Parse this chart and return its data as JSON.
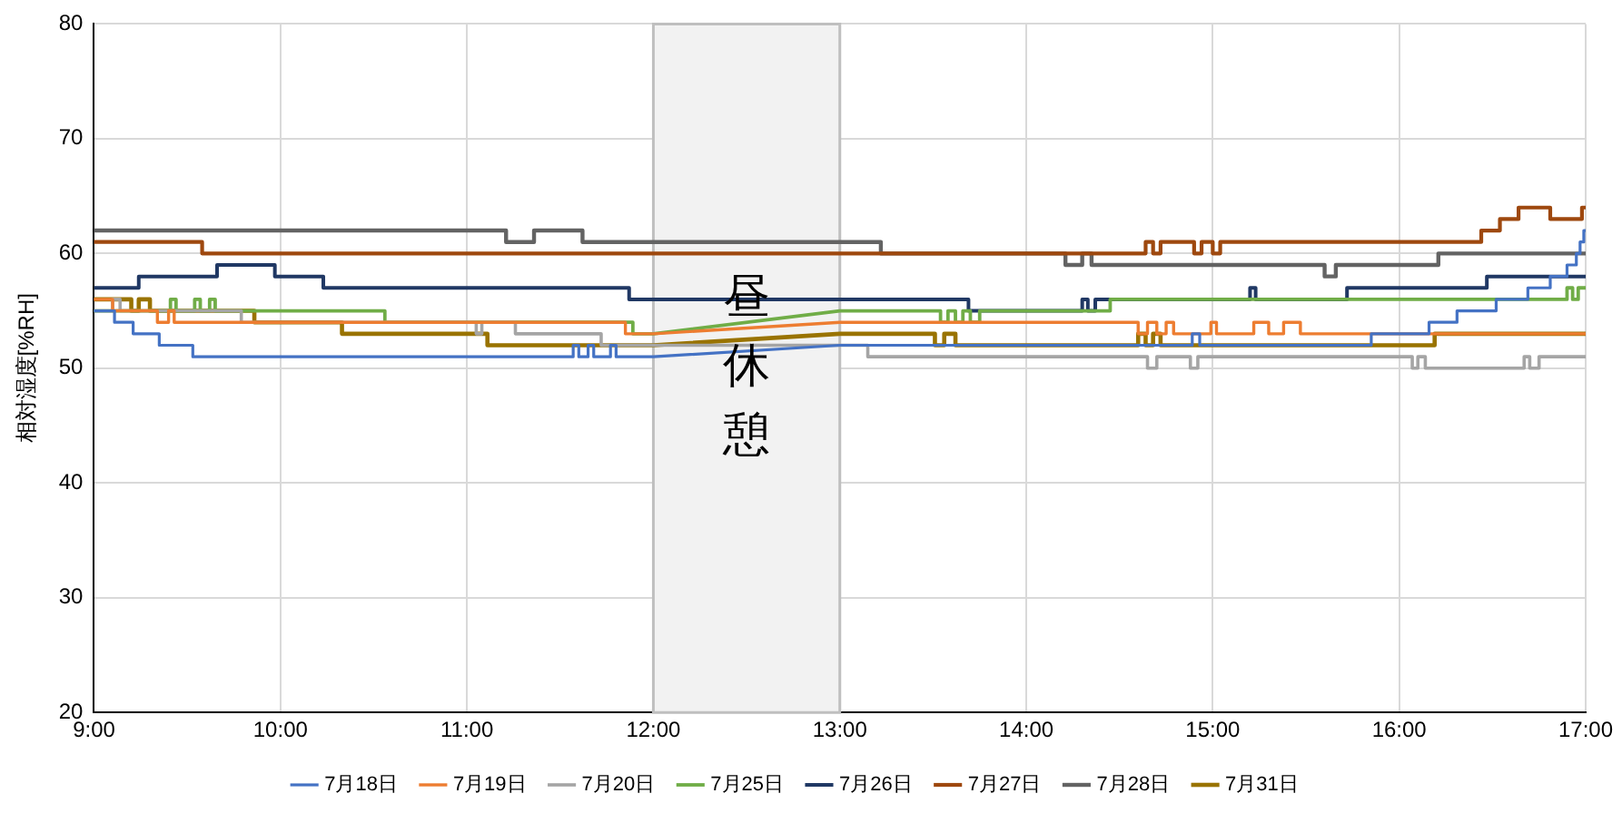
{
  "chart_data": {
    "type": "line",
    "ylabel": "相対湿度[%RH]",
    "xlim": [
      9,
      17
    ],
    "xticks": [
      {
        "value": 9,
        "label": "9:00"
      },
      {
        "value": 10,
        "label": "10:00"
      },
      {
        "value": 11,
        "label": "11:00"
      },
      {
        "value": 12,
        "label": "12:00"
      },
      {
        "value": 13,
        "label": "13:00"
      },
      {
        "value": 14,
        "label": "14:00"
      },
      {
        "value": 15,
        "label": "15:00"
      },
      {
        "value": 16,
        "label": "16:00"
      },
      {
        "value": 17,
        "label": "17:00"
      }
    ],
    "ylim": [
      20,
      80
    ],
    "yticks": [
      20,
      30,
      40,
      50,
      60,
      70,
      80
    ],
    "grid": true,
    "legend": "bottom",
    "marker": "none",
    "line_style": "solid",
    "bands": [
      {
        "axis": "x",
        "from": 12,
        "to": 13,
        "label": "昼休憩",
        "color": "#f2f2f2"
      }
    ],
    "series": [
      {
        "name": "7月18日",
        "color": "#4472c4",
        "x": [
          9,
          9.11,
          9.11,
          9.21,
          9.21,
          9.35,
          9.35,
          9.53,
          9.53,
          11.57,
          11.57,
          11.6,
          11.6,
          11.65,
          11.65,
          11.68,
          11.68,
          11.77,
          11.77,
          11.8,
          11.8,
          12,
          13,
          14.89,
          14.89,
          14.93,
          14.93,
          15.85,
          15.85,
          16.16,
          16.16,
          16.31,
          16.31,
          16.52,
          16.52,
          16.69,
          16.69,
          16.81,
          16.81,
          16.9,
          16.9,
          16.95,
          16.95,
          16.97,
          16.97,
          16.99,
          16.99,
          17
        ],
        "values": [
          55,
          55,
          54,
          54,
          53,
          53,
          52,
          52,
          51,
          51,
          52,
          52,
          51,
          51,
          52,
          52,
          51,
          51,
          52,
          52,
          51,
          51,
          52,
          52,
          53,
          53,
          52,
          52,
          53,
          53,
          54,
          54,
          55,
          55,
          56,
          56,
          57,
          57,
          58,
          58,
          59,
          59,
          60,
          60,
          61,
          61,
          62,
          62
        ]
      },
      {
        "name": "7月19日",
        "color": "#ed7d31",
        "x": [
          9,
          9.1,
          9.1,
          9.34,
          9.34,
          9.4,
          9.4,
          9.43,
          9.43,
          11.85,
          11.85,
          12,
          13,
          14.6,
          14.6,
          14.65,
          14.65,
          14.7,
          14.7,
          14.75,
          14.75,
          14.79,
          14.79,
          14.99,
          14.99,
          15.02,
          15.02,
          15.22,
          15.22,
          15.3,
          15.3,
          15.38,
          15.38,
          15.47,
          15.47,
          17
        ],
        "values": [
          56,
          56,
          55,
          55,
          54,
          54,
          55,
          55,
          54,
          54,
          53,
          53,
          54,
          54,
          53,
          53,
          54,
          54,
          53,
          53,
          54,
          54,
          53,
          53,
          54,
          54,
          53,
          53,
          54,
          54,
          53,
          53,
          54,
          54,
          53,
          53
        ]
      },
      {
        "name": "7月20日",
        "color": "#a5a5a5",
        "x": [
          9,
          9.1,
          9.1,
          9.14,
          9.14,
          9.79,
          9.79,
          11.05,
          11.05,
          11.08,
          11.08,
          11.26,
          11.26,
          11.72,
          11.72,
          12,
          13,
          13.15,
          13.15,
          14.65,
          14.65,
          14.7,
          14.7,
          14.88,
          14.88,
          14.92,
          14.92,
          16.07,
          16.07,
          16.1,
          16.1,
          16.14,
          16.14,
          16.67,
          16.67,
          16.7,
          16.7,
          16.75,
          16.75,
          17
        ],
        "values": [
          55,
          55,
          56,
          56,
          55,
          55,
          54,
          54,
          53,
          53,
          54,
          54,
          53,
          53,
          52,
          52,
          52,
          52,
          51,
          51,
          50,
          50,
          51,
          51,
          50,
          50,
          51,
          51,
          50,
          50,
          51,
          51,
          50,
          50,
          51,
          51,
          50,
          50,
          51,
          51
        ]
      },
      {
        "name": "7月25日",
        "color": "#70ad47",
        "x": [
          9,
          9.41,
          9.41,
          9.44,
          9.44,
          9.54,
          9.54,
          9.57,
          9.57,
          9.62,
          9.62,
          9.65,
          9.65,
          10.56,
          10.56,
          11.89,
          11.89,
          12,
          13,
          13.54,
          13.54,
          13.58,
          13.58,
          13.62,
          13.62,
          13.66,
          13.66,
          13.7,
          13.7,
          13.75,
          13.75,
          14.45,
          14.45,
          16.9,
          16.9,
          16.93,
          16.93,
          16.96,
          16.96,
          17
        ],
        "values": [
          55,
          55,
          56,
          56,
          55,
          55,
          56,
          56,
          55,
          55,
          56,
          56,
          55,
          55,
          54,
          54,
          53,
          53,
          55,
          55,
          54,
          54,
          55,
          55,
          54,
          54,
          55,
          55,
          54,
          54,
          55,
          55,
          56,
          56,
          57,
          57,
          56,
          56,
          57,
          57
        ]
      },
      {
        "name": "7月26日",
        "color": "#203864",
        "x": [
          9,
          9.24,
          9.24,
          9.66,
          9.66,
          9.97,
          9.97,
          10.23,
          10.23,
          11.87,
          11.87,
          12,
          13,
          13.69,
          13.69,
          14.3,
          14.3,
          14.33,
          14.33,
          14.37,
          14.37,
          15.2,
          15.2,
          15.23,
          15.23,
          15.72,
          15.72,
          16.47,
          16.47,
          17
        ],
        "values": [
          57,
          57,
          58,
          58,
          59,
          59,
          58,
          58,
          57,
          57,
          56,
          56,
          56,
          56,
          55,
          55,
          56,
          56,
          55,
          55,
          56,
          56,
          57,
          57,
          56,
          56,
          57,
          57,
          58,
          58
        ]
      },
      {
        "name": "7月27日",
        "color": "#9e480e",
        "x": [
          9,
          9.58,
          9.58,
          12,
          13,
          14.64,
          14.64,
          14.68,
          14.68,
          14.72,
          14.72,
          14.9,
          14.9,
          14.94,
          14.94,
          15,
          15,
          15.04,
          15.04,
          16.44,
          16.44,
          16.54,
          16.54,
          16.64,
          16.64,
          16.81,
          16.81,
          16.98,
          16.98,
          17
        ],
        "values": [
          61,
          61,
          60,
          60,
          60,
          60,
          61,
          61,
          60,
          60,
          61,
          61,
          60,
          60,
          61,
          61,
          60,
          60,
          61,
          61,
          62,
          62,
          63,
          63,
          64,
          64,
          63,
          63,
          64,
          64
        ]
      },
      {
        "name": "7月28日",
        "color": "#636363",
        "x": [
          9,
          11.21,
          11.21,
          11.36,
          11.36,
          11.62,
          11.62,
          12,
          13,
          13.22,
          13.22,
          14.21,
          14.21,
          14.3,
          14.3,
          14.35,
          14.35,
          15.6,
          15.6,
          15.66,
          15.66,
          16.21,
          16.21,
          17
        ],
        "values": [
          62,
          62,
          61,
          61,
          62,
          62,
          61,
          61,
          61,
          61,
          60,
          60,
          59,
          59,
          60,
          60,
          59,
          59,
          58,
          58,
          59,
          59,
          60,
          60
        ]
      },
      {
        "name": "7月31日",
        "color": "#997300",
        "x": [
          9,
          9.2,
          9.2,
          9.24,
          9.24,
          9.3,
          9.3,
          9.86,
          9.86,
          10.33,
          10.33,
          11.11,
          11.11,
          12,
          13,
          13.51,
          13.51,
          13.56,
          13.56,
          13.62,
          13.62,
          14.6,
          14.6,
          14.64,
          14.64,
          14.68,
          14.68,
          14.72,
          14.72,
          16.19,
          16.19,
          17
        ],
        "values": [
          56,
          56,
          55,
          55,
          56,
          56,
          55,
          55,
          54,
          54,
          53,
          53,
          52,
          52,
          53,
          53,
          52,
          52,
          53,
          53,
          52,
          52,
          53,
          53,
          52,
          52,
          53,
          53,
          52,
          52,
          53,
          53
        ]
      }
    ]
  }
}
